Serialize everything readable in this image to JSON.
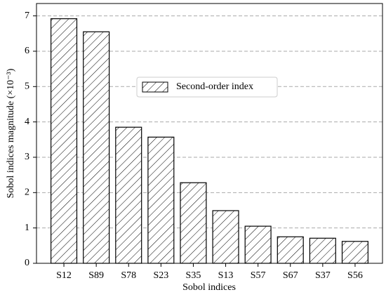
{
  "chart_data": {
    "type": "bar",
    "x_label": "Sobol indices",
    "y_label": "Sobol indices magnitude (×10⁻³)",
    "categories": [
      "S12",
      "S89",
      "S78",
      "S23",
      "S35",
      "S13",
      "S57",
      "S67",
      "S37",
      "S56"
    ],
    "series": [
      {
        "name": "Second-order index",
        "color": "#ffffff",
        "values": [
          6.92,
          6.55,
          3.85,
          3.57,
          2.28,
          1.49,
          1.05,
          0.75,
          0.71,
          0.62
        ]
      }
    ],
    "ylim": [
      0,
      7.35
    ],
    "yticks": [
      0,
      1,
      2,
      3,
      4,
      5,
      6,
      7
    ],
    "grid": true,
    "legend": "center"
  }
}
